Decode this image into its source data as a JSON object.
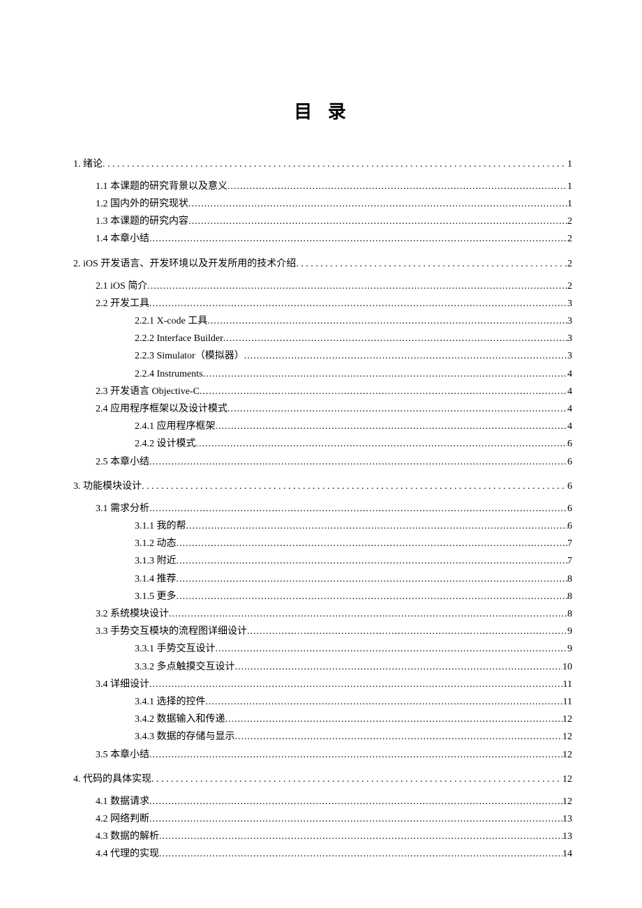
{
  "title": "目 录",
  "entries": [
    {
      "level": "chapter",
      "first": true,
      "num": "1.",
      "label": "绪论",
      "page": "1",
      "dotStyle": "wide"
    },
    {
      "level": "sub1",
      "num": "1.1",
      "label": "本课题的研究背景以及意义",
      "page": "1",
      "dotStyle": "dotted"
    },
    {
      "level": "sub1",
      "num": "1.2",
      "label": "国内外的研究现状",
      "page": "1",
      "dotStyle": "dotted"
    },
    {
      "level": "sub1",
      "num": "1.3",
      "label": "本课题的研究内容",
      "page": "2",
      "dotStyle": "dotted"
    },
    {
      "level": "sub1",
      "num": "1.4",
      "label": "本章小结",
      "page": "2",
      "dotStyle": "dotted"
    },
    {
      "level": "chapter",
      "num": "2.",
      "label": "iOS 开发语言、开发环境以及开发所用的技术介绍",
      "page": "2",
      "dotStyle": "wide"
    },
    {
      "level": "sub1",
      "num": "2.1",
      "label": "iOS 简介",
      "page": "2",
      "dotStyle": "dotted"
    },
    {
      "level": "sub1",
      "num": "2.2",
      "label": "开发工具",
      "page": "3",
      "dotStyle": "dotted"
    },
    {
      "level": "sub2",
      "num": "2.2.1",
      "label": "X-code 工具",
      "page": "3",
      "dotStyle": "dotted"
    },
    {
      "level": "sub2",
      "num": "2.2.2",
      "label": "Interface Builder",
      "page": "3",
      "dotStyle": "dotted"
    },
    {
      "level": "sub2",
      "num": "2.2.3",
      "label": "Simulator（模拟器）",
      "page": "3",
      "dotStyle": "dotted"
    },
    {
      "level": "sub2",
      "num": "2.2.4",
      "label": "Instruments",
      "page": "4",
      "dotStyle": "dotted"
    },
    {
      "level": "sub1",
      "num": "2.3",
      "label": "开发语言 Objective-C",
      "page": "4",
      "dotStyle": "dotted"
    },
    {
      "level": "sub1",
      "num": "2.4",
      "label": "应用程序框架以及设计模式",
      "page": "4",
      "dotStyle": "dotted"
    },
    {
      "level": "sub2",
      "num": "2.4.1",
      "label": "应用程序框架",
      "page": "4",
      "dotStyle": "dotted"
    },
    {
      "level": "sub2",
      "num": "2.4.2",
      "label": "设计模式",
      "page": "6",
      "dotStyle": "dotted"
    },
    {
      "level": "sub1",
      "num": "2.5",
      "label": "本章小结",
      "page": "6",
      "dotStyle": "dotted"
    },
    {
      "level": "chapter",
      "num": "3.",
      "label": "功能模块设计",
      "page": "6",
      "dotStyle": "wide"
    },
    {
      "level": "sub1",
      "num": "3.1",
      "label": "需求分析",
      "page": "6",
      "dotStyle": "dotted"
    },
    {
      "level": "sub2",
      "num": "3.1.1",
      "label": "我的帮",
      "page": "6",
      "dotStyle": "dotted"
    },
    {
      "level": "sub2",
      "num": "3.1.2",
      "label": "动态",
      "page": "7",
      "dotStyle": "dotted"
    },
    {
      "level": "sub2",
      "num": "3.1.3",
      "label": "附近",
      "page": "7",
      "dotStyle": "dotted"
    },
    {
      "level": "sub2",
      "num": "3.1.4",
      "label": "推荐",
      "page": "8",
      "dotStyle": "dotted"
    },
    {
      "level": "sub2",
      "num": "3.1.5",
      "label": "更多",
      "page": "8",
      "dotStyle": "dotted"
    },
    {
      "level": "sub1",
      "num": "3.2",
      "label": "系统模块设计",
      "page": "8",
      "dotStyle": "dotted"
    },
    {
      "level": "sub1",
      "num": "3.3",
      "label": "手势交互模块的流程图详细设计",
      "page": "9",
      "dotStyle": "dotted"
    },
    {
      "level": "sub2",
      "num": "3.3.1",
      "label": "手势交互设计",
      "page": "9",
      "dotStyle": "dotted"
    },
    {
      "level": "sub2",
      "num": "3.3.2",
      "label": "多点触摸交互设计",
      "page": "10",
      "dotStyle": "dotted"
    },
    {
      "level": "sub1",
      "num": "3.4",
      "label": "详细设计",
      "page": "11",
      "dotStyle": "dotted"
    },
    {
      "level": "sub2",
      "num": "3.4.1",
      "label": "选择的控件",
      "page": "11",
      "dotStyle": "dotted"
    },
    {
      "level": "sub2",
      "num": "3.4.2",
      "label": "数据输入和传递",
      "page": "12",
      "dotStyle": "dotted"
    },
    {
      "level": "sub2",
      "num": "3.4.3",
      "label": "数据的存储与显示",
      "page": "12",
      "dotStyle": "dotted"
    },
    {
      "level": "sub1",
      "num": "3.5",
      "label": "本章小结",
      "page": "12",
      "dotStyle": "dotted"
    },
    {
      "level": "chapter",
      "num": "4.",
      "label": "代码的具体实现",
      "page": "12",
      "dotStyle": "wide"
    },
    {
      "level": "sub1",
      "num": "4.1",
      "label": "数据请求",
      "page": "12",
      "dotStyle": "dotted"
    },
    {
      "level": "sub1",
      "num": "4.2",
      "label": "网络判断",
      "page": "13",
      "dotStyle": "dotted"
    },
    {
      "level": "sub1",
      "num": "4.3",
      "label": "数据的解析",
      "page": "13",
      "dotStyle": "dotted"
    },
    {
      "level": "sub1",
      "num": "4.4",
      "label": "代理的实现",
      "page": "14",
      "dotStyle": "dotted"
    }
  ]
}
